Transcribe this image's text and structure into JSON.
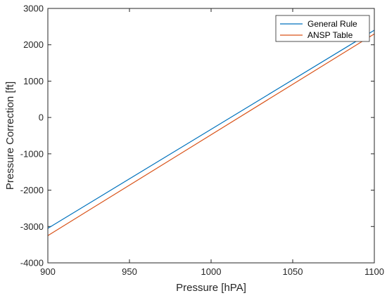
{
  "chart_data": {
    "type": "line",
    "xlabel": "Pressure [hPA]",
    "ylabel": "Pressure Correction [ft]",
    "xlim": [
      900,
      1100
    ],
    "ylim": [
      -4000,
      3000
    ],
    "x_ticks": [
      900,
      950,
      1000,
      1050,
      1100
    ],
    "y_ticks": [
      -4000,
      -3000,
      -2000,
      -1000,
      0,
      1000,
      2000,
      3000
    ],
    "grid": false,
    "legend_position": "top-right",
    "series": [
      {
        "name": "General Rule",
        "color": "#0072BD",
        "x": [
          900,
          1100
        ],
        "y": [
          -3050,
          2400
        ]
      },
      {
        "name": "ANSP Table",
        "color": "#D95319",
        "x": [
          900,
          1100
        ],
        "y": [
          -3250,
          2300
        ]
      }
    ]
  }
}
